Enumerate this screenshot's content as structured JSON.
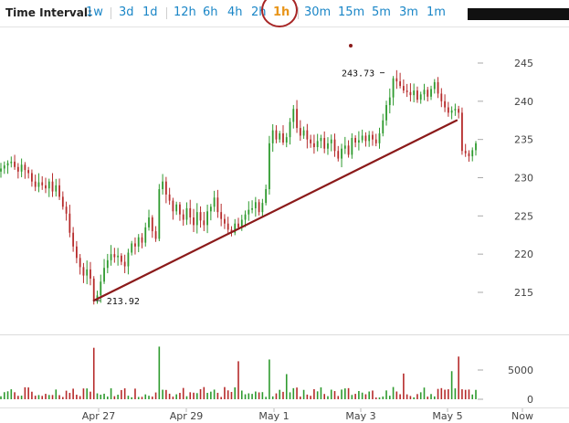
{
  "toolbar": {
    "label": "Time Interval:",
    "intervals": [
      {
        "label": "1w",
        "active": false
      },
      {
        "label": "3d",
        "active": false
      },
      {
        "label": "1d",
        "active": false
      },
      {
        "label": "12h",
        "active": false
      },
      {
        "label": "6h",
        "active": false
      },
      {
        "label": "4h",
        "active": false
      },
      {
        "label": "2h",
        "active": false
      },
      {
        "label": "1h",
        "active": true
      },
      {
        "label": "30m",
        "active": false
      },
      {
        "label": "15m",
        "active": false
      },
      {
        "label": "5m",
        "active": false
      },
      {
        "label": "3m",
        "active": false
      },
      {
        "label": "1m",
        "active": false
      }
    ]
  },
  "colors": {
    "link": "#1a86c7",
    "active": "#e8951a",
    "up": "#2e9a2e",
    "down": "#b62b2b",
    "trendline": "#8b1a1a"
  },
  "chart_data": {
    "type": "candlestick",
    "interval": "1h",
    "x_ticks": [
      "Apr 27",
      "Apr 29",
      "May 1",
      "May 3",
      "May 5",
      "Now"
    ],
    "price_axis": {
      "ticks": [
        215,
        220,
        225,
        230,
        235,
        240,
        245
      ],
      "range": [
        212,
        248
      ]
    },
    "volume_axis": {
      "ticks": [
        0,
        5000
      ],
      "range": [
        0,
        9500
      ]
    },
    "annotations": [
      {
        "label": "213.92",
        "type": "low",
        "value": 213.92
      },
      {
        "label": "243.73",
        "type": "high",
        "value": 243.73
      }
    ],
    "trendline": {
      "from": 213.92,
      "to": 237.5
    },
    "series": [
      {
        "values": [
          231.2,
          231.6,
          231.9,
          232.1,
          231.4,
          230.8,
          231.7,
          231.0,
          230.6,
          229.5,
          228.8,
          229.4,
          229.0,
          228.6,
          229.5,
          228.2,
          229.0,
          227.5,
          226.2,
          225.3,
          222.8,
          221.0,
          219.5,
          218.3,
          217.2,
          218.0,
          216.8,
          214.0,
          214.6,
          216.4,
          218.2,
          219.2,
          220.0,
          219.6,
          219.8,
          219.0,
          218.4,
          220.2,
          221.4,
          221.0,
          222.2,
          221.5,
          223.5,
          224.8,
          223.0,
          222.0,
          228.5,
          229.5,
          227.8,
          227.0,
          225.6,
          226.5,
          225.2,
          224.5,
          226.0,
          224.8,
          223.8,
          225.5,
          224.4,
          223.8,
          225.6,
          226.2,
          227.4,
          225.5,
          224.6,
          224.0,
          223.2,
          222.8,
          224.0,
          223.5,
          224.5,
          225.2,
          225.8,
          226.0,
          226.8,
          225.5,
          226.7,
          228.5,
          234.5,
          236.2,
          235.0,
          235.8,
          234.6,
          235.3,
          237.3,
          239.0,
          236.5,
          235.5,
          236.2,
          235.0,
          234.5,
          234.0,
          234.8,
          235.2,
          233.8,
          234.5,
          235.0,
          233.5,
          232.5,
          233.8,
          234.2,
          233.0,
          235.2,
          234.6,
          234.9,
          235.5,
          234.8,
          235.6,
          235.0,
          234.5,
          235.8,
          237.5,
          239.5,
          240.5,
          243.0,
          242.6,
          242.0,
          241.4,
          241.2,
          240.8,
          241.4,
          240.2,
          240.9,
          241.5,
          240.6,
          241.6,
          242.5,
          241.0,
          240.0,
          239.2,
          238.5,
          238.8,
          239.0,
          238.5,
          233.5,
          233.2,
          232.8,
          233.6,
          234.5
        ]
      }
    ]
  }
}
